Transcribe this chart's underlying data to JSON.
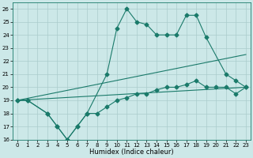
{
  "xlabel": "Humidex (Indice chaleur)",
  "background_color": "#cce8e8",
  "grid_color": "#aacccc",
  "line_color": "#1a7a6a",
  "series": {
    "record_high": {
      "x": [
        0,
        1,
        3,
        4,
        5,
        6,
        7,
        9,
        10,
        11,
        12,
        13,
        14,
        15,
        16,
        17,
        18,
        19,
        21,
        22,
        23
      ],
      "y": [
        19,
        19,
        18,
        17,
        16,
        17,
        18,
        21,
        24.5,
        26,
        25,
        24.8,
        24,
        24,
        24,
        25.5,
        25.5,
        23.8,
        21,
        20.5,
        20
      ]
    },
    "avg_high": {
      "x": [
        0,
        23
      ],
      "y": [
        19,
        22.5
      ]
    },
    "avg_low": {
      "x": [
        0,
        23
      ],
      "y": [
        19,
        20
      ]
    },
    "record_low": {
      "x": [
        0,
        1,
        3,
        4,
        5,
        6,
        7,
        8,
        9,
        10,
        11,
        12,
        13,
        14,
        15,
        16,
        17,
        18,
        19,
        20,
        21,
        22,
        23
      ],
      "y": [
        19,
        19,
        18,
        17,
        16,
        17,
        18,
        18,
        18.5,
        19,
        19.2,
        19.5,
        19.5,
        19.8,
        20,
        20,
        20.2,
        20.5,
        20,
        20,
        20,
        19.5,
        20
      ]
    }
  },
  "ylim": [
    16,
    26.5
  ],
  "xlim": [
    -0.5,
    23.5
  ],
  "yticks": [
    16,
    17,
    18,
    19,
    20,
    21,
    22,
    23,
    24,
    25,
    26
  ],
  "xticks": [
    0,
    1,
    2,
    3,
    4,
    5,
    6,
    7,
    8,
    9,
    10,
    11,
    12,
    13,
    14,
    15,
    16,
    17,
    18,
    19,
    20,
    21,
    22,
    23
  ]
}
